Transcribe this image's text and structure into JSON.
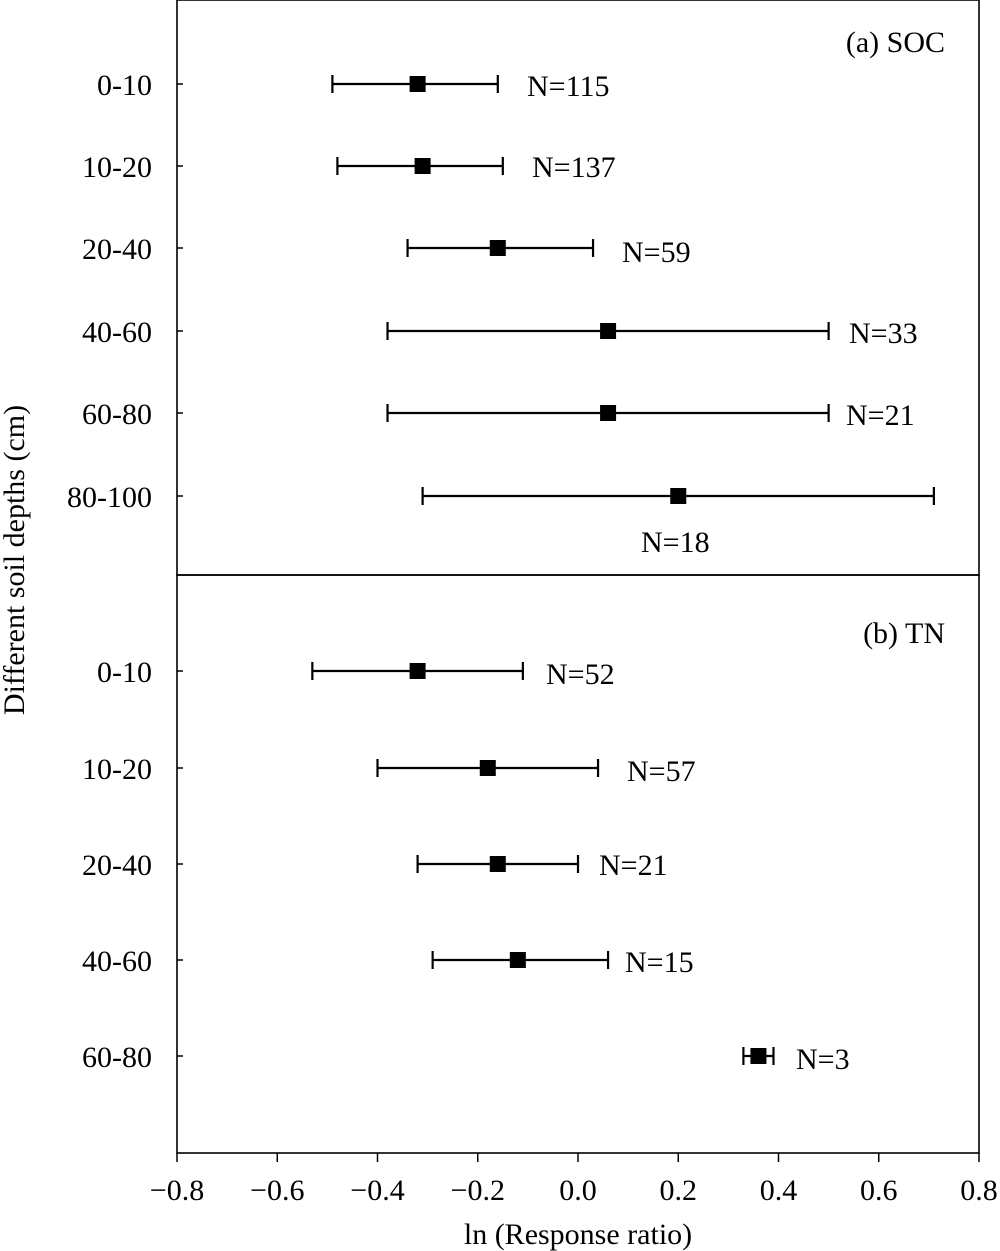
{
  "figure": {
    "ylabel": "Different soil depths (cm)",
    "xlabel": "ln (Response ratio)",
    "marker_color": "#000000"
  },
  "chart_data": [
    {
      "type": "scatter",
      "panel": "(a) SOC",
      "title": "(a) SOC",
      "categories": [
        "0-10",
        "10-20",
        "20-40",
        "40-60",
        "60-80",
        "80-100"
      ],
      "values": [
        -0.32,
        -0.31,
        -0.16,
        0.06,
        0.06,
        0.2
      ],
      "ci_low": [
        -0.49,
        -0.48,
        -0.34,
        -0.38,
        -0.38,
        -0.31
      ],
      "ci_high": [
        -0.16,
        -0.15,
        0.03,
        0.5,
        0.5,
        0.71
      ],
      "n_labels": [
        "N=115",
        "N=137",
        "N=59",
        "N=33",
        "N=21",
        "N=18"
      ],
      "xlim": [
        -0.8,
        0.8
      ]
    },
    {
      "type": "scatter",
      "panel": "(b) TN",
      "title": "(b) TN",
      "categories": [
        "0-10",
        "10-20",
        "20-40",
        "40-60",
        "60-80"
      ],
      "values": [
        -0.32,
        -0.18,
        -0.16,
        -0.12,
        0.36
      ],
      "ci_low": [
        -0.53,
        -0.4,
        -0.32,
        -0.29,
        0.33
      ],
      "ci_high": [
        -0.11,
        0.04,
        0.0,
        0.06,
        0.39
      ],
      "n_labels": [
        "N=52",
        "N=57",
        "N=21",
        "N=15",
        "N=3"
      ],
      "xlim": [
        -0.8,
        0.8
      ],
      "xticks": [
        "−0.8",
        "−0.6",
        "−0.4",
        "−0.2",
        "0.0",
        "0.2",
        "0.4",
        "0.6",
        "0.8"
      ]
    }
  ]
}
